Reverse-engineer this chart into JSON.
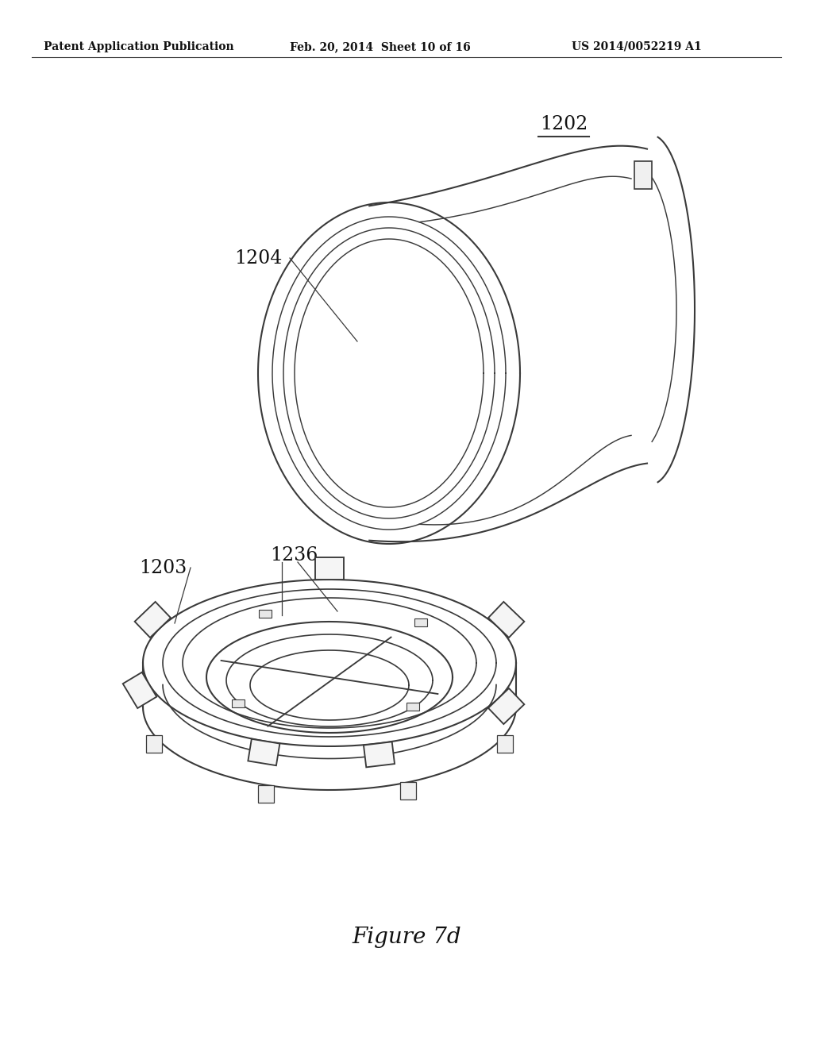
{
  "header_left": "Patent Application Publication",
  "header_mid": "Feb. 20, 2014  Sheet 10 of 16",
  "header_right": "US 2014/0052219 A1",
  "figure_label": "Figure 7d",
  "label_1202": "1202",
  "label_1204": "1204",
  "label_1203": "1203",
  "label_1236": "1236",
  "bg_color": "#ffffff",
  "line_color": "#3a3a3a",
  "line_width": 1.5,
  "fig_width": 10.24,
  "fig_height": 13.2
}
